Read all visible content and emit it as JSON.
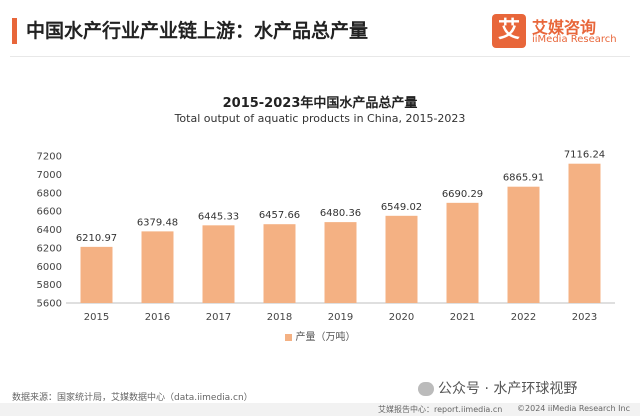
{
  "header": {
    "title": "中国水产行业产业链上游：水产品总产量",
    "brand_cn": "艾媒咨询",
    "brand_en": "iiMedia Research",
    "logo_glyph": "艾"
  },
  "colors": {
    "accent": "#e8663a",
    "bar": "#f4b183"
  },
  "chart_data": {
    "type": "bar",
    "title": "2015-2023年中国水产品总产量",
    "subtitle": "Total output of aquatic products in China, 2015-2023",
    "categories": [
      "2015",
      "2016",
      "2017",
      "2018",
      "2019",
      "2020",
      "2021",
      "2022",
      "2023"
    ],
    "series": [
      {
        "name": "产量（万吨）",
        "values": [
          6210.97,
          6379.48,
          6445.33,
          6457.66,
          6480.36,
          6549.02,
          6690.29,
          6865.91,
          7116.24
        ]
      }
    ],
    "data_labels": [
      "6210.97",
      "6379.48",
      "6445.33",
      "6457.66",
      "6480.36",
      "6549.02",
      "6690.29",
      "6865.91",
      "7116.24"
    ],
    "y_ticks": [
      5600,
      5800,
      6000,
      6200,
      6400,
      6600,
      6800,
      7000,
      7200
    ],
    "ylim": [
      5600,
      7200
    ],
    "grid": false,
    "legend_position": "bottom"
  },
  "source": "数据来源：国家统计局，艾媒数据中心（data.iimedia.cn）",
  "watermark": "公众号 · 水产环球视野",
  "footer": {
    "left": "艾媒报告中心：report.iimedia.cn",
    "right": "©2024 iiMedia Research Inc"
  }
}
